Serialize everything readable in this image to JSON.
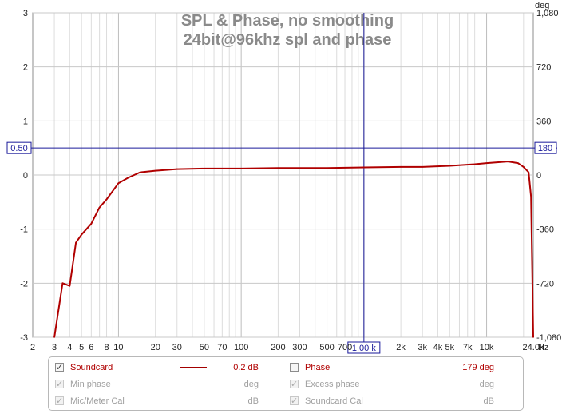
{
  "chart_data": {
    "type": "line",
    "title": "SPL & Phase, no smoothing",
    "subtitle": "24bit@96khz spl and phase",
    "xscale": "log",
    "xlim": [
      2,
      24000
    ],
    "xunit": "Hz",
    "ylim": [
      -3,
      3
    ],
    "y2lim": [
      -1080,
      1080
    ],
    "y2unit": "deg",
    "x_tick_labels": [
      {
        "v": 2,
        "t": "2"
      },
      {
        "v": 3,
        "t": "3"
      },
      {
        "v": 4,
        "t": "4"
      },
      {
        "v": 5,
        "t": "5"
      },
      {
        "v": 6,
        "t": "6"
      },
      {
        "v": 8,
        "t": "8"
      },
      {
        "v": 10,
        "t": "10"
      },
      {
        "v": 20,
        "t": "20"
      },
      {
        "v": 30,
        "t": "30"
      },
      {
        "v": 50,
        "t": "50"
      },
      {
        "v": 70,
        "t": "70"
      },
      {
        "v": 100,
        "t": "100"
      },
      {
        "v": 200,
        "t": "200"
      },
      {
        "v": 300,
        "t": "300"
      },
      {
        "v": 500,
        "t": "500"
      },
      {
        "v": 700,
        "t": "700"
      },
      {
        "v": 2000,
        "t": "2k"
      },
      {
        "v": 3000,
        "t": "3k"
      },
      {
        "v": 4000,
        "t": "4k"
      },
      {
        "v": 5000,
        "t": "5k"
      },
      {
        "v": 7000,
        "t": "7k"
      },
      {
        "v": 10000,
        "t": "10k"
      },
      {
        "v": 24000,
        "t": "24.0k"
      }
    ],
    "x_unit_label": "Hz",
    "y_tick_labels": [
      {
        "v": 3,
        "t": "3"
      },
      {
        "v": 2,
        "t": "2"
      },
      {
        "v": 1,
        "t": "1"
      },
      {
        "v": 0,
        "t": "0"
      },
      {
        "v": -1,
        "t": "-1"
      },
      {
        "v": -2,
        "t": "-2"
      },
      {
        "v": -3,
        "t": "-3"
      }
    ],
    "y2_tick_labels": [
      {
        "v": 1080,
        "t": "1,080"
      },
      {
        "v": 720,
        "t": "720"
      },
      {
        "v": 360,
        "t": "360"
      },
      {
        "v": 0,
        "t": "0"
      },
      {
        "v": -360,
        "t": "-360"
      },
      {
        "v": -720,
        "t": "-720"
      },
      {
        "v": -1080,
        "t": "-1,080"
      }
    ],
    "y2_unit_label": "deg",
    "cursor": {
      "x": 1000,
      "x_label": "1.00 k",
      "y": 0.5,
      "y_label": "0.50",
      "y2_label": "180"
    },
    "grid": true,
    "series": [
      {
        "name": "Soundcard",
        "color": "#b00000",
        "x": [
          3,
          3.5,
          4,
          4.5,
          5,
          6,
          7,
          8,
          10,
          12,
          15,
          20,
          30,
          50,
          100,
          200,
          500,
          1000,
          2000,
          3000,
          5000,
          8000,
          10000,
          15000,
          18000,
          20000,
          22000,
          23000,
          24000
        ],
        "y": [
          -3.0,
          -2.0,
          -2.05,
          -1.25,
          -1.1,
          -0.9,
          -0.6,
          -0.45,
          -0.15,
          -0.05,
          0.05,
          0.08,
          0.11,
          0.12,
          0.12,
          0.13,
          0.13,
          0.14,
          0.15,
          0.15,
          0.17,
          0.2,
          0.22,
          0.25,
          0.22,
          0.15,
          0.05,
          -0.4,
          -3.0
        ]
      }
    ]
  },
  "legend": {
    "rows": [
      {
        "label": "Soundcard",
        "value": "0.2 dB",
        "checked": true,
        "active": true
      },
      {
        "label": "Min phase",
        "value": "deg",
        "checked": true,
        "active": false
      },
      {
        "label": "Mic/Meter Cal",
        "value": "dB",
        "checked": true,
        "active": false
      }
    ],
    "rows_right": [
      {
        "label": "Phase",
        "value": "179 deg",
        "checked": false,
        "active": true
      },
      {
        "label": "Excess phase",
        "value": "deg",
        "checked": true,
        "active": false
      },
      {
        "label": "Soundcard Cal",
        "value": "dB",
        "checked": true,
        "active": false
      }
    ]
  }
}
